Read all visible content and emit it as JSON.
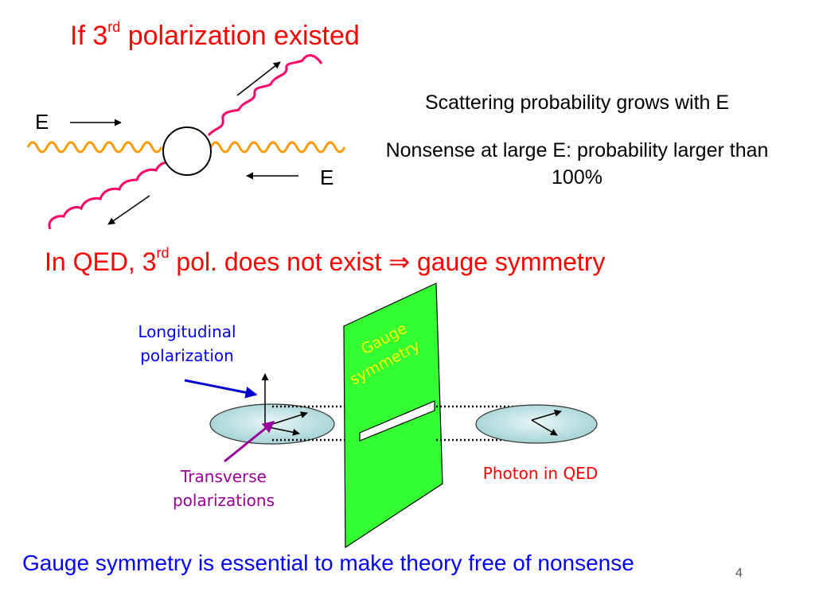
{
  "slide": {
    "title1": {
      "before": "If 3",
      "sup": "rd",
      "after": " polarization existed"
    },
    "diagram1": {
      "e_label_left": "E",
      "e_label_right": "E"
    },
    "text1": "Scattering probability grows with E",
    "text2": "Nonsense at large E: probability larger than 100%",
    "title2": {
      "before": "In QED, 3",
      "sup": "rd",
      "after": " pol. does not exist ",
      "implies": "⇒",
      "end": " gauge symmetry"
    },
    "diagram2": {
      "longitudinal_label": "Longitudinal polarization",
      "gauge_label_line1": "Gauge",
      "gauge_label_line2": "symmetry",
      "transverse_label": "Transverse polarizations",
      "photon_label": "Photon in QED"
    },
    "bottom_text": "Gauge symmetry is essential to make theory free of nonsense",
    "page_number": "4"
  },
  "colors": {
    "title_red": "#ff0000",
    "body_blue": "#0000ff",
    "purple": "#990099",
    "wave_orange": "#ff9900",
    "wave_pink": "#ff0066",
    "gauge_green": "#33ff33",
    "disk_fill": "#b8e0e0"
  }
}
